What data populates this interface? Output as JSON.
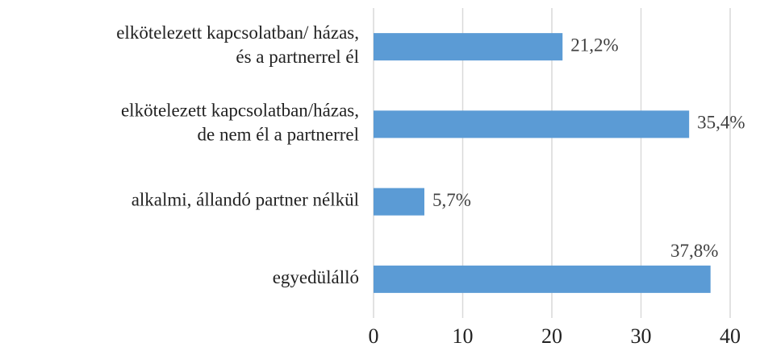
{
  "chart_data": {
    "type": "bar",
    "orientation": "horizontal",
    "categories": [
      "elkötelezett kapcsolatban/ házas,\nés a partnerrel él",
      "elkötelezett kapcsolatban/házas,\nde nem él a partnerrel",
      "alkalmi, állandó partner nélkül",
      "egyedülálló"
    ],
    "values": [
      21.2,
      35.4,
      5.7,
      37.8
    ],
    "value_labels": [
      "21,2%",
      "35,4%",
      "5,7%",
      "37,8%"
    ],
    "color": "#5b9bd5",
    "xlim": [
      0,
      40
    ],
    "xticks": [
      0,
      10,
      20,
      30,
      40
    ],
    "grid": true
  }
}
